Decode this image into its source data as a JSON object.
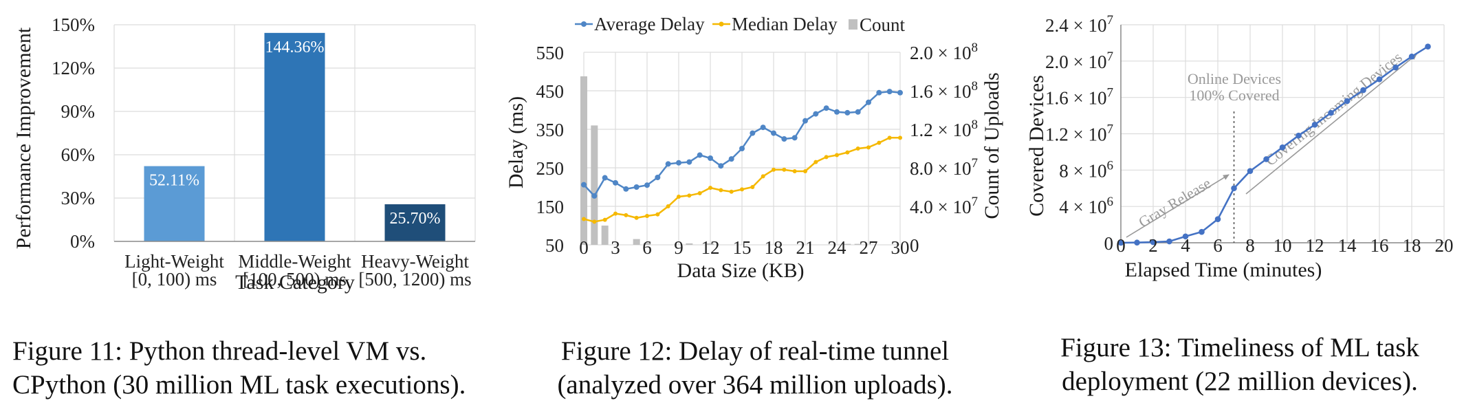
{
  "colors": {
    "bar_light": "#5b9bd5",
    "bar_mid": "#2e75b6",
    "bar_heavy": "#1f4e79",
    "avg": "#4f86c6",
    "median": "#f5b800",
    "count": "#c0c0c0",
    "fig13_line": "#4472c4",
    "annotation": "#999999"
  },
  "chart_data": [
    {
      "type": "bar",
      "categories": [
        {
          "line1": "Light-Weight",
          "line2": "[0, 100) ms"
        },
        {
          "line1": "Middle-Weight",
          "line2": "[100, 500) ms"
        },
        {
          "line1": "Heavy-Weight",
          "line2": "[500, 1200) ms"
        }
      ],
      "values": [
        52.11,
        144.36,
        25.7
      ],
      "data_labels": [
        "52.11%",
        "144.36%",
        "25.70%"
      ],
      "ylim": [
        0,
        150
      ],
      "yticks": [
        0,
        30,
        60,
        90,
        120,
        150
      ],
      "ytick_labels": [
        "0%",
        "30%",
        "60%",
        "90%",
        "120%",
        "150%"
      ],
      "ylabel": "Performance Improvement",
      "xlabel": "Task Category",
      "caption_line1": "Figure 11: Python thread-level VM vs.",
      "caption_line2": "CPython (30 million ML task executions)."
    },
    {
      "type": "line",
      "x": [
        0,
        1,
        2,
        3,
        4,
        5,
        6,
        7,
        8,
        9,
        10,
        11,
        12,
        13,
        14,
        15,
        16,
        17,
        18,
        19,
        20,
        21,
        22,
        23,
        24,
        25,
        26,
        27,
        28,
        29,
        30
      ],
      "xticks": [
        0,
        3,
        6,
        9,
        12,
        15,
        18,
        21,
        24,
        27,
        30
      ],
      "xlim": [
        0,
        30
      ],
      "ylim": [
        50,
        550
      ],
      "yticks": [
        50,
        150,
        250,
        350,
        450,
        550
      ],
      "y2lim": [
        0,
        200000000
      ],
      "y2ticks": [
        0,
        40000000,
        80000000,
        120000000,
        160000000,
        200000000
      ],
      "y2tick_labels": [
        {
          "m": "0",
          "e": ""
        },
        {
          "m": "4.0 × 10",
          "e": "7"
        },
        {
          "m": "8.0 × 10",
          "e": "7"
        },
        {
          "m": "1.2 × 10",
          "e": "8"
        },
        {
          "m": "1.6 × 10",
          "e": "8"
        },
        {
          "m": "2.0 × 10",
          "e": "8"
        }
      ],
      "series": [
        {
          "name": "Average Delay",
          "axis": "left",
          "values": [
            206,
            177,
            224,
            211,
            195,
            200,
            205,
            225,
            260,
            263,
            265,
            283,
            275,
            255,
            273,
            300,
            340,
            355,
            340,
            325,
            328,
            372,
            390,
            405,
            395,
            393,
            395,
            420,
            445,
            448,
            445
          ]
        },
        {
          "name": "Median Delay",
          "axis": "left",
          "values": [
            117,
            110,
            115,
            131,
            127,
            120,
            125,
            129,
            150,
            175,
            178,
            184,
            198,
            192,
            188,
            194,
            200,
            228,
            245,
            245,
            241,
            241,
            265,
            278,
            283,
            290,
            300,
            303,
            315,
            328,
            328
          ]
        },
        {
          "name": "Count",
          "axis": "right",
          "type": "bar",
          "values": [
            175000000,
            124000000,
            20000000,
            0,
            0,
            6000000,
            2000000,
            0,
            0,
            0,
            1500000,
            0,
            1500000,
            0,
            0,
            0,
            0,
            0,
            0,
            0,
            0,
            0,
            0,
            0,
            0,
            1000000,
            1000000,
            0,
            0,
            0,
            0
          ]
        }
      ],
      "legend_position": "top",
      "xlabel": "Data Size (KB)",
      "ylabel": "Delay (ms)",
      "y2label": "Count of Uploads",
      "caption_line1": "Figure 12: Delay of real-time tunnel",
      "caption_line2": "(analyzed over 364 million uploads)."
    },
    {
      "type": "line",
      "x": [
        0,
        1,
        2,
        3,
        4,
        5,
        6,
        7,
        8,
        9,
        10,
        11,
        12,
        13,
        14,
        15,
        16,
        17,
        18,
        19
      ],
      "values": [
        0,
        20000,
        70000,
        150000,
        700000,
        1200000,
        2600000,
        6000000,
        7900000,
        9200000,
        10500000,
        11800000,
        13000000,
        14300000,
        15600000,
        16800000,
        18000000,
        19300000,
        20500000,
        21600000
      ],
      "xlim": [
        0,
        20
      ],
      "xticks": [
        0,
        2,
        4,
        6,
        8,
        10,
        12,
        14,
        16,
        18,
        20
      ],
      "ylim": [
        0,
        24000000
      ],
      "yticks": [
        0,
        4000000,
        8000000,
        12000000,
        16000000,
        20000000,
        24000000
      ],
      "ytick_labels": [
        {
          "m": "0",
          "e": ""
        },
        {
          "m": "4 × 10",
          "e": "6"
        },
        {
          "m": "8 × 10",
          "e": "6"
        },
        {
          "m": "1.2 × 10",
          "e": "7"
        },
        {
          "m": "1.6 × 10",
          "e": "7"
        },
        {
          "m": "2.0 × 10",
          "e": "7"
        },
        {
          "m": "2.4 × 10",
          "e": "7"
        }
      ],
      "vline_x": 7,
      "annotations": {
        "online_line1": "Online Devices",
        "online_line2": "100% Covered",
        "gray_release": "Gray Release",
        "covering": "Covering Incoming Devices"
      },
      "xlabel": "Elapsed Time (minutes)",
      "ylabel": "Covered Devices",
      "caption_line1": "Figure 13: Timeliness of ML task",
      "caption_line2": "deployment (22 million devices)."
    }
  ]
}
